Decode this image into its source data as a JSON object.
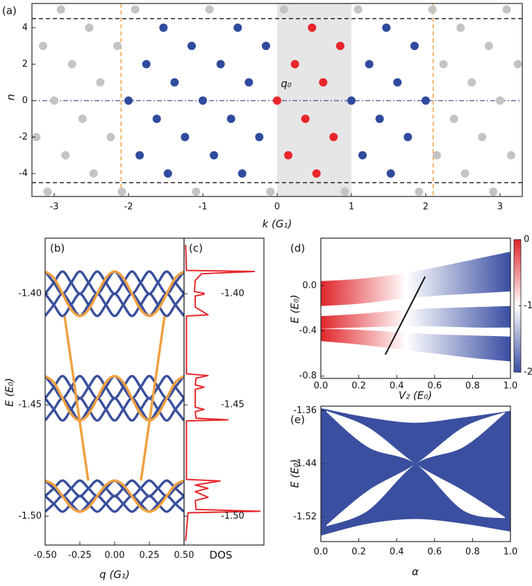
{
  "chart_data": [
    {
      "type": "scatter",
      "panel": "(a)",
      "x_label": "k (G₁)",
      "y_label": "n",
      "annotation": "q₀",
      "xlim": [
        -3.3,
        3.3
      ],
      "ylim": [
        -5.26,
        5.33
      ],
      "xticks": [
        -3,
        -2,
        -1,
        0,
        1,
        2,
        3
      ],
      "yticks": [
        -4,
        -2,
        0,
        2,
        4
      ],
      "shade": [
        0,
        1
      ],
      "hlines": [
        4.5,
        -4.5
      ],
      "vlines": [
        -2.1,
        2.1
      ],
      "baseline": 0,
      "series": [
        {
          "color": "#c4c4c4",
          "x": [
            -2.91,
            -1.91,
            -0.91,
            0.09,
            1.09,
            2.09,
            3.09,
            -2.53,
            2.47,
            -3.15,
            -2.15,
            2.85,
            -2.76,
            2.24,
            3.24,
            -2.38,
            2.62,
            -3,
            3,
            -2.62,
            2.38,
            -3.24,
            -2.24,
            2.76,
            -2.85,
            2.15,
            3.15,
            -2.47,
            2.53,
            -3.09,
            -2.09,
            -1.09,
            -0.09,
            0.91,
            1.91,
            2.91
          ],
          "values": [
            5,
            5,
            5,
            5,
            5,
            5,
            5,
            4,
            4,
            3,
            3,
            3,
            2,
            2,
            2,
            1,
            1,
            0,
            0,
            -1,
            -1,
            -2,
            -2,
            -2,
            -3,
            -3,
            -3,
            -4,
            -4,
            -5,
            -5,
            -5,
            -5,
            -5,
            -5,
            -5
          ]
        },
        {
          "color": "#2f4b9e",
          "x": [
            -1.53,
            -0.53,
            1.47,
            -1.15,
            -0.15,
            1.85,
            -1.76,
            -0.76,
            1.24,
            -1.38,
            -0.38,
            1.62,
            -2,
            -1,
            1,
            2,
            -1.62,
            -0.62,
            1.38,
            -1.24,
            -0.24,
            1.76,
            -1.85,
            -0.85,
            1.15,
            -1.47,
            -0.47,
            1.53
          ],
          "values": [
            4,
            4,
            4,
            3,
            3,
            3,
            2,
            2,
            2,
            1,
            1,
            1,
            0,
            0,
            0,
            0,
            -1,
            -1,
            -1,
            -2,
            -2,
            -2,
            -3,
            -3,
            -3,
            -4,
            -4,
            -4
          ]
        },
        {
          "color": "#e8262b",
          "x": [
            0.47,
            0.85,
            0.24,
            0.62,
            0,
            0.38,
            0.76,
            0.15,
            0.53
          ],
          "values": [
            4,
            3,
            2,
            1,
            0,
            -1,
            -2,
            -3,
            -4
          ]
        }
      ]
    },
    {
      "type": "line",
      "panel": "(b)",
      "x_label": "q (G₁)",
      "y_label": "E (E₀)",
      "xlim": [
        -0.5,
        0.5
      ],
      "ylim": [
        -1.513,
        -1.375
      ],
      "xticks": [
        {
          "value": -0.5,
          "label": "-0.50"
        },
        {
          "value": -0.25,
          "label": "-0.25"
        },
        {
          "value": 0,
          "label": "0.00"
        },
        {
          "value": 0.25,
          "label": "0.25"
        },
        {
          "value": 0.5,
          "label": "0.50"
        }
      ],
      "yticks": [
        {
          "value": -1.4,
          "label": "-1.40"
        },
        {
          "value": -1.45,
          "label": "-1.45"
        },
        {
          "value": -1.5,
          "label": "-1.50"
        }
      ],
      "x": [
        -0.5,
        -0.4375,
        -0.375,
        -0.3125,
        -0.25,
        -0.1875,
        -0.125,
        -0.0625,
        0,
        0.0625,
        0.125,
        0.1875,
        0.25,
        0.3125,
        0.375,
        0.4375,
        0.5
      ],
      "series": [
        {
          "color": "#3a4f9c",
          "values": [
            -1.39,
            -1.395,
            -1.4,
            -1.395,
            -1.39,
            -1.395,
            -1.4,
            -1.395,
            -1.39,
            -1.395,
            -1.4,
            -1.395,
            -1.39,
            -1.395,
            -1.4,
            -1.395,
            -1.39
          ]
        },
        {
          "color": "#3a4f9c",
          "values": [
            -1.4,
            -1.395,
            -1.39,
            -1.395,
            -1.4,
            -1.395,
            -1.39,
            -1.395,
            -1.4,
            -1.395,
            -1.39,
            -1.395,
            -1.4,
            -1.395,
            -1.39,
            -1.395,
            -1.4
          ]
        },
        {
          "color": "#3a4f9c",
          "values": [
            -1.4,
            -1.405,
            -1.41,
            -1.405,
            -1.4,
            -1.405,
            -1.41,
            -1.405,
            -1.4,
            -1.405,
            -1.41,
            -1.405,
            -1.4,
            -1.405,
            -1.41,
            -1.405,
            -1.4
          ]
        },
        {
          "color": "#3a4f9c",
          "values": [
            -1.41,
            -1.405,
            -1.4,
            -1.405,
            -1.41,
            -1.405,
            -1.4,
            -1.405,
            -1.41,
            -1.405,
            -1.4,
            -1.405,
            -1.41,
            -1.405,
            -1.4,
            -1.405,
            -1.41
          ]
        },
        {
          "color": "#3a4f9c",
          "values": [
            -1.437,
            -1.442,
            -1.447,
            -1.442,
            -1.437,
            -1.442,
            -1.447,
            -1.442,
            -1.437,
            -1.442,
            -1.447,
            -1.442,
            -1.437,
            -1.442,
            -1.447,
            -1.442,
            -1.437
          ]
        },
        {
          "color": "#3a4f9c",
          "values": [
            -1.447,
            -1.442,
            -1.437,
            -1.442,
            -1.447,
            -1.442,
            -1.437,
            -1.442,
            -1.447,
            -1.442,
            -1.437,
            -1.442,
            -1.447,
            -1.442,
            -1.437,
            -1.442,
            -1.447
          ]
        },
        {
          "color": "#3a4f9c",
          "values": [
            -1.447,
            -1.452,
            -1.457,
            -1.452,
            -1.447,
            -1.452,
            -1.457,
            -1.452,
            -1.447,
            -1.452,
            -1.457,
            -1.452,
            -1.447,
            -1.452,
            -1.457,
            -1.452,
            -1.447
          ]
        },
        {
          "color": "#3a4f9c",
          "values": [
            -1.457,
            -1.452,
            -1.447,
            -1.452,
            -1.457,
            -1.452,
            -1.447,
            -1.452,
            -1.457,
            -1.452,
            -1.447,
            -1.452,
            -1.457,
            -1.452,
            -1.447,
            -1.452,
            -1.457
          ]
        },
        {
          "color": "#3a4f9c",
          "values": [
            -1.484,
            -1.4875,
            -1.491,
            -1.4875,
            -1.484,
            -1.4875,
            -1.491,
            -1.4875,
            -1.484,
            -1.4875,
            -1.491,
            -1.4875,
            -1.484,
            -1.4875,
            -1.491,
            -1.4875,
            -1.484
          ]
        },
        {
          "color": "#3a4f9c",
          "values": [
            -1.491,
            -1.4875,
            -1.484,
            -1.4875,
            -1.491,
            -1.4875,
            -1.484,
            -1.4875,
            -1.491,
            -1.4875,
            -1.484,
            -1.4875,
            -1.491,
            -1.4875,
            -1.484,
            -1.4875,
            -1.491
          ]
        },
        {
          "color": "#3a4f9c",
          "values": [
            -1.491,
            -1.4945,
            -1.498,
            -1.4945,
            -1.491,
            -1.4945,
            -1.498,
            -1.4945,
            -1.491,
            -1.4945,
            -1.498,
            -1.4945,
            -1.491,
            -1.4945,
            -1.498,
            -1.4945,
            -1.491
          ]
        },
        {
          "color": "#3a4f9c",
          "values": [
            -1.498,
            -1.4945,
            -1.491,
            -1.4945,
            -1.498,
            -1.4945,
            -1.491,
            -1.4945,
            -1.498,
            -1.4945,
            -1.491,
            -1.4945,
            -1.498,
            -1.4945,
            -1.491,
            -1.4945,
            -1.498
          ]
        },
        {
          "color": "#f0a040",
          "values": [
            -1.39,
            -1.3929,
            -1.4,
            -1.4071,
            -1.41,
            -1.4071,
            -1.4,
            -1.3929,
            -1.39,
            -1.3929,
            -1.4,
            -1.4071,
            -1.41,
            -1.4071,
            -1.4,
            -1.3929,
            -1.39
          ]
        },
        {
          "color": "#f0a040",
          "values": [
            -1.437,
            -1.4399,
            -1.447,
            -1.4541,
            -1.457,
            -1.4541,
            -1.447,
            -1.4399,
            -1.437,
            -1.4399,
            -1.447,
            -1.4541,
            -1.457,
            -1.4541,
            -1.447,
            -1.4399,
            -1.437
          ]
        },
        {
          "color": "#f0a040",
          "values": [
            -1.484,
            -1.486,
            -1.491,
            -1.496,
            -1.498,
            -1.496,
            -1.491,
            -1.486,
            -1.484,
            -1.486,
            -1.491,
            -1.496,
            -1.498,
            -1.496,
            -1.491,
            -1.486,
            -1.484
          ]
        },
        {
          "color": "#f0a040",
          "x": [
            -0.36,
            -0.19
          ],
          "values": [
            -1.41,
            -1.484
          ]
        },
        {
          "color": "#f0a040",
          "x": [
            0.36,
            0.19
          ],
          "values": [
            -1.41,
            -1.484
          ]
        }
      ]
    },
    {
      "type": "line",
      "panel": "(c)",
      "x_label": "DOS",
      "orientation": "vertical",
      "xlim": [
        0,
        1
      ],
      "ylim": [
        -1.513,
        -1.375
      ],
      "yticks": [
        {
          "value": -1.4,
          "label": "-1.40"
        },
        {
          "value": -1.45,
          "label": "-1.45"
        },
        {
          "value": -1.5,
          "label": "-1.50"
        }
      ],
      "x": [
        -1.378,
        -1.3895,
        -1.39,
        -1.391,
        -1.394,
        -1.399,
        -1.3998,
        -1.4002,
        -1.401,
        -1.406,
        -1.4095,
        -1.41,
        -1.436,
        -1.4368,
        -1.438,
        -1.441,
        -1.442,
        -1.443,
        -1.451,
        -1.452,
        -1.453,
        -1.456,
        -1.4567,
        -1.4572,
        -1.4835,
        -1.4842,
        -1.486,
        -1.4875,
        -1.489,
        -1.4915,
        -1.493,
        -1.497,
        -1.4978,
        -1.4985,
        -1.511
      ],
      "series": [
        {
          "color": "#e8262b",
          "values": [
            0.02,
            0.03,
            0.88,
            0.22,
            0.14,
            0.13,
            0.25,
            0.25,
            0.14,
            0.14,
            0.3,
            0.03,
            0.03,
            0.3,
            0.15,
            0.14,
            0.25,
            0.14,
            0.14,
            0.25,
            0.14,
            0.15,
            0.55,
            0.03,
            0.03,
            0.45,
            0.14,
            0.3,
            0.14,
            0.3,
            0.14,
            0.15,
            0.95,
            0.05,
            0.02
          ]
        }
      ]
    },
    {
      "type": "area",
      "panel": "(d)",
      "x_label": "V₂ (E₀)",
      "y_label": "E (E₀)",
      "xlim": [
        0,
        1
      ],
      "ylim": [
        -0.82,
        0.42
      ],
      "xticks": [
        {
          "value": 0,
          "label": "0.0"
        },
        0.2,
        0.4,
        0.6,
        0.8,
        {
          "value": 1,
          "label": "1.0"
        }
      ],
      "yticks": [
        {
          "value": 0,
          "label": "0.0"
        },
        -0.4,
        -0.8
      ],
      "colormap": [
        "#3a4ea3",
        "#ffffff",
        "#e0262b"
      ],
      "clim": [
        -2,
        0
      ],
      "cticks": [
        0,
        -1,
        -2
      ],
      "x": [
        0,
        0.2,
        0.4,
        0.6,
        0.8,
        1
      ],
      "series": [
        {
          "upper": [
            0.04,
            0.06,
            0.1,
            0.16,
            0.23,
            0.3
          ],
          "lower": [
            -0.18,
            -0.16,
            -0.12,
            -0.09,
            -0.07,
            -0.05
          ]
        },
        {
          "upper": [
            -0.27,
            -0.25,
            -0.22,
            -0.2,
            -0.19,
            -0.18
          ],
          "lower": [
            -0.38,
            -0.37,
            -0.36,
            -0.36,
            -0.37,
            -0.37
          ]
        },
        {
          "upper": [
            -0.38,
            -0.39,
            -0.41,
            -0.43,
            -0.44,
            -0.45
          ],
          "lower": [
            -0.49,
            -0.52,
            -0.56,
            -0.6,
            -0.64,
            -0.67
          ]
        }
      ],
      "line": {
        "x": [
          0.34,
          0.55
        ],
        "values": [
          -0.61,
          0.08
        ]
      }
    },
    {
      "type": "area",
      "panel": "(e)",
      "x_label": "α",
      "y_label": "E (E₀)",
      "xlim": [
        0,
        1
      ],
      "ylim": [
        -1.557,
        -1.353
      ],
      "xticks": [
        {
          "value": 0,
          "label": "0.0"
        },
        0.2,
        0.4,
        0.6,
        0.8,
        {
          "value": 1,
          "label": "1.0"
        }
      ],
      "yticks": [
        -1.36,
        -1.44,
        -1.52
      ],
      "x": [
        0,
        0.25,
        0.5,
        0.75,
        1
      ],
      "series": [
        {
          "color": "#3b4fa0",
          "upper": [
            -1.356,
            -1.37,
            -1.378,
            -1.37,
            -1.36
          ],
          "lower": [
            -1.548,
            -1.53,
            -1.523,
            -1.53,
            -1.542
          ]
        },
        {
          "color": "#ffffff",
          "x": [
            0.03,
            0.25,
            0.5,
            0.75,
            0.97
          ],
          "upper": [
            -1.36,
            -1.385,
            -1.44,
            -1.48,
            -1.52
          ],
          "lower": [
            -1.362,
            -1.415,
            -1.44,
            -1.51,
            -1.522
          ]
        },
        {
          "color": "#ffffff",
          "x": [
            0.03,
            0.25,
            0.5,
            0.75,
            0.97
          ],
          "upper": [
            -1.532,
            -1.48,
            -1.44,
            -1.385,
            -1.362
          ],
          "lower": [
            -1.534,
            -1.51,
            -1.44,
            -1.415,
            -1.364
          ]
        }
      ]
    }
  ]
}
